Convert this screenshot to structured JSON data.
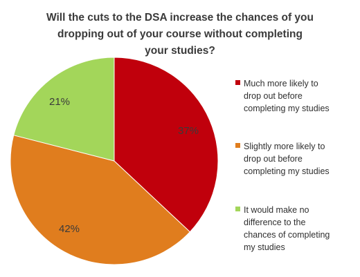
{
  "chart_data": {
    "type": "pie",
    "title": "Will the cuts to the DSA increase the chances of you dropping out of your course without completing your studies?",
    "title_lines": [
      "Will the cuts to the DSA increase the chances of you",
      "dropping out of your course without completing",
      "your studies?"
    ],
    "categories": [
      "Much more likely to drop out before completing my studies",
      "Slightly more likely to drop out before completing my studies",
      "It would make no difference to the chances of completing my studies"
    ],
    "values": [
      37,
      42,
      21
    ],
    "data_labels": [
      "37%",
      "42%",
      "21%"
    ],
    "colors": [
      "#c0000c",
      "#e07d1e",
      "#a3d65a"
    ],
    "legend_position": "right",
    "start_angle_deg": 0,
    "direction": "clockwise"
  },
  "legend": [
    {
      "label": "Much more likely to drop out before completing my studies",
      "lines": [
        "Much more likely to",
        "drop out before",
        "completing my studies"
      ],
      "color": "#c0000c"
    },
    {
      "label": "Slightly more likely to drop out before completing my studies",
      "lines": [
        "Slightly more likely to",
        "drop out before",
        "completing my studies"
      ],
      "color": "#e07d1e"
    },
    {
      "label": "It would make no difference to the chances of completing my studies",
      "lines": [
        "It would make no",
        "difference to the",
        "chances of completing",
        "my studies"
      ],
      "color": "#a3d65a"
    }
  ]
}
